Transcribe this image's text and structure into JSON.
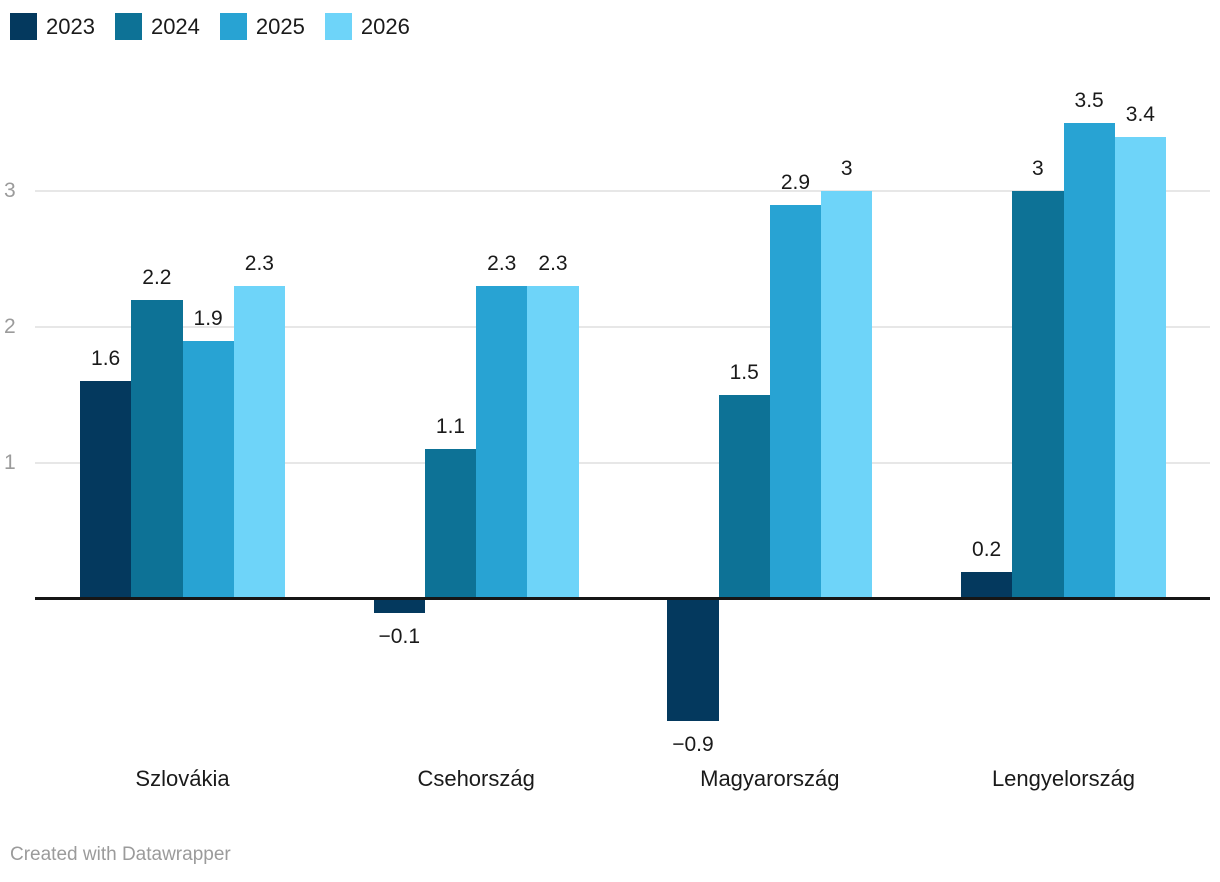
{
  "chart_data": {
    "type": "bar",
    "title": "",
    "categories": [
      "Szlovákia",
      "Csehország",
      "Magyarország",
      "Lengyelország"
    ],
    "series": [
      {
        "name": "2023",
        "color": "#04395e",
        "values": [
          1.6,
          -0.1,
          -0.9,
          0.2
        ],
        "labels": [
          "1.6",
          "−0.1",
          "−0.9",
          "0.2"
        ]
      },
      {
        "name": "2024",
        "color": "#0d7296",
        "values": [
          2.2,
          1.1,
          1.5,
          3
        ],
        "labels": [
          "2.2",
          "1.1",
          "1.5",
          "3"
        ]
      },
      {
        "name": "2025",
        "color": "#28a3d3",
        "values": [
          1.9,
          2.3,
          2.9,
          3.5
        ],
        "labels": [
          "1.9",
          "2.3",
          "2.9",
          "3.5"
        ]
      },
      {
        "name": "2026",
        "color": "#6ed4f9",
        "values": [
          2.3,
          2.3,
          3,
          3.4
        ],
        "labels": [
          "2.3",
          "2.3",
          "3",
          "3.4"
        ]
      }
    ],
    "yticks": [
      1,
      2,
      3
    ],
    "ylim": [
      -1.2,
      3.8
    ],
    "grid": "horizontal",
    "legend_position": "top-left",
    "value_labels": true,
    "xlabel": "",
    "ylabel": ""
  },
  "colors": {
    "background": "#ffffff",
    "axis_line": "#161616",
    "gridline": "#e7e7e7",
    "tick_label": "#9b9b9b",
    "text": "#1a1a1a"
  },
  "footer": {
    "text": "Created with Datawrapper"
  }
}
